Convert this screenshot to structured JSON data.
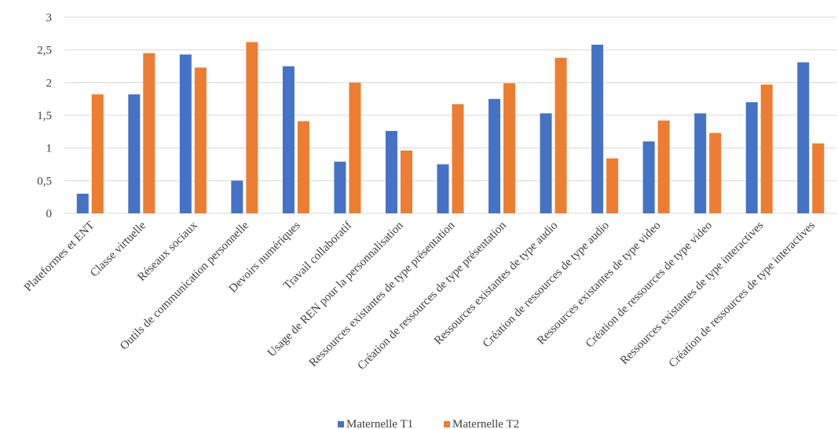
{
  "chart_data": {
    "type": "bar",
    "title": "",
    "xlabel": "",
    "ylabel": "",
    "ylim": [
      0,
      3
    ],
    "yticks": [
      {
        "value": 0,
        "label": "0"
      },
      {
        "value": 0.5,
        "label": "0,5"
      },
      {
        "value": 1,
        "label": "1"
      },
      {
        "value": 1.5,
        "label": "1,5"
      },
      {
        "value": 2,
        "label": "2"
      },
      {
        "value": 2.5,
        "label": "2,5"
      },
      {
        "value": 3,
        "label": "3"
      }
    ],
    "grid": true,
    "legend_position": "bottom",
    "categories": [
      "Plateformes et ENT",
      "Classe virtuelle",
      "Réseaux sociaux",
      "Outils de communication personnelle",
      "Devoirs numériques",
      "Travail collaboratif",
      "Usage de REN pour la personnalisation",
      "Ressources existantes de type présentation",
      "Création de ressources de type présentation",
      "Ressources existantes de type audio",
      "Création de ressources de type audio",
      "Ressources existantes de type video",
      "Création de ressources de type video",
      "Ressources existantes de type interactives",
      "Création de ressources de type interactives"
    ],
    "series": [
      {
        "name": "Maternelle T1",
        "color": "#4472C4",
        "values": [
          0.3,
          1.82,
          2.43,
          0.5,
          2.25,
          0.79,
          1.26,
          0.75,
          1.75,
          1.53,
          2.58,
          1.1,
          1.53,
          1.7,
          2.31
        ]
      },
      {
        "name": "Maternelle T2",
        "color": "#ED7D31",
        "values": [
          1.82,
          2.45,
          2.23,
          2.62,
          1.41,
          2.0,
          0.96,
          1.67,
          1.99,
          2.38,
          0.84,
          1.42,
          1.23,
          1.97,
          1.07
        ]
      }
    ]
  }
}
